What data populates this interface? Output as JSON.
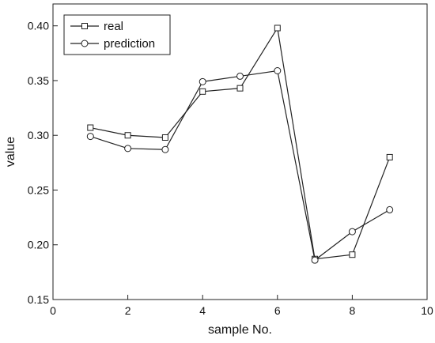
{
  "chart_data": {
    "type": "line",
    "xlabel": "sample No.",
    "ylabel": "value",
    "xlim": [
      0,
      10
    ],
    "ylim": [
      0.15,
      0.42
    ],
    "x_ticks": [
      0,
      2,
      4,
      6,
      8,
      10
    ],
    "x_tick_labels": [
      "0",
      "2",
      "4",
      "6",
      "8",
      "10"
    ],
    "y_ticks": [
      0.15,
      0.2,
      0.25,
      0.3,
      0.35,
      0.4
    ],
    "y_tick_labels": [
      "0.15",
      "0.20",
      "0.25",
      "0.30",
      "0.35",
      "0.40"
    ],
    "grid": false,
    "legend_position": "top-left",
    "series": [
      {
        "name": "real",
        "marker": "square",
        "color": "#222222",
        "x": [
          1,
          2,
          3,
          4,
          5,
          6,
          7,
          8,
          9
        ],
        "y": [
          0.307,
          0.3,
          0.298,
          0.34,
          0.343,
          0.398,
          0.187,
          0.191,
          0.28
        ]
      },
      {
        "name": "prediction",
        "marker": "circle",
        "color": "#222222",
        "x": [
          1,
          2,
          3,
          4,
          5,
          6,
          7,
          8,
          9
        ],
        "y": [
          0.299,
          0.288,
          0.287,
          0.349,
          0.354,
          0.359,
          0.186,
          0.212,
          0.232
        ]
      }
    ]
  }
}
